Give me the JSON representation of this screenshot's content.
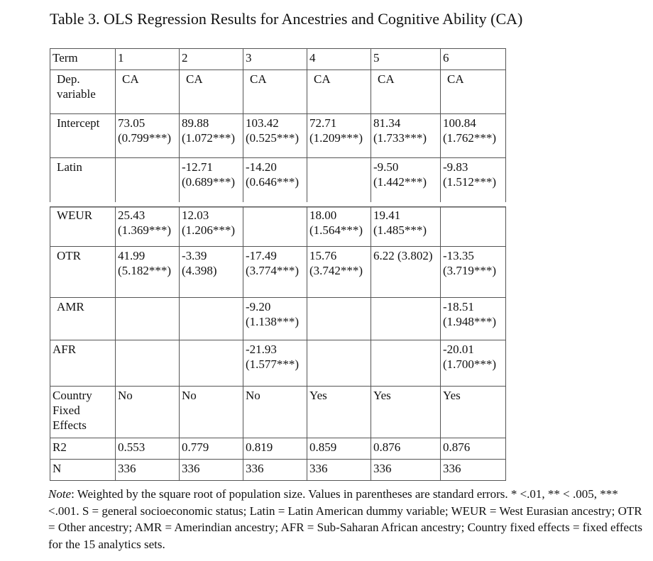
{
  "title": "Table 3. OLS Regression Results for Ancestries and Cognitive Ability (CA)",
  "table": {
    "header": [
      "Term",
      "1",
      "2",
      "3",
      "4",
      "5",
      "6"
    ],
    "rows": [
      {
        "label": "Dep. variable",
        "cells": [
          [
            "CA"
          ],
          [
            "CA"
          ],
          [
            "CA"
          ],
          [
            "CA"
          ],
          [
            "CA"
          ],
          [
            "CA"
          ]
        ]
      },
      {
        "label": "Intercept",
        "cells": [
          [
            "73.05",
            "(0.799***)"
          ],
          [
            "89.88",
            "(1.072***)"
          ],
          [
            "103.42",
            "(0.525***)"
          ],
          [
            "72.71",
            "(1.209***)"
          ],
          [
            "81.34",
            "(1.733***)"
          ],
          [
            "100.84",
            "(1.762***)"
          ]
        ]
      },
      {
        "label": "Latin",
        "cells": [
          [],
          [
            "-12.71",
            "(0.689***)"
          ],
          [
            "-14.20",
            "(0.646***)"
          ],
          [],
          [
            "-9.50",
            "(1.442***)"
          ],
          [
            "-9.83",
            "(1.512***)"
          ]
        ]
      },
      {
        "label": "WEUR",
        "cells": [
          [
            "25.43",
            "(1.369***)"
          ],
          [
            "12.03",
            "(1.206***)"
          ],
          [],
          [
            "18.00",
            "(1.564***)"
          ],
          [
            "19.41",
            "(1.485***)"
          ],
          []
        ]
      },
      {
        "label": "OTR",
        "cells": [
          [
            "41.99",
            "(5.182***)"
          ],
          [
            "-3.39",
            "(4.398)"
          ],
          [
            "-17.49",
            "(3.774***)"
          ],
          [
            "15.76",
            "(3.742***)"
          ],
          [
            "6.22 (3.802)"
          ],
          [
            "-13.35",
            "(3.719***)"
          ]
        ]
      },
      {
        "label": "AMR",
        "cells": [
          [],
          [],
          [
            "-9.20",
            "(1.138***)"
          ],
          [],
          [],
          [
            "-18.51",
            "(1.948***)"
          ]
        ]
      },
      {
        "label": "AFR",
        "cells": [
          [],
          [],
          [
            "-21.93",
            "(1.577***)"
          ],
          [],
          [],
          [
            "-20.01",
            "(1.700***)"
          ]
        ]
      },
      {
        "label": "Country Fixed Effects",
        "cells": [
          [
            "No"
          ],
          [
            "No"
          ],
          [
            "No"
          ],
          [
            "Yes"
          ],
          [
            "Yes"
          ],
          [
            "Yes"
          ]
        ]
      },
      {
        "label": "R2",
        "cells": [
          [
            "0.553"
          ],
          [
            "0.779"
          ],
          [
            "0.819"
          ],
          [
            "0.859"
          ],
          [
            "0.876"
          ],
          [
            "0.876"
          ]
        ]
      },
      {
        "label": "N",
        "cells": [
          [
            "336"
          ],
          [
            "336"
          ],
          [
            "336"
          ],
          [
            "336"
          ],
          [
            "336"
          ],
          [
            "336"
          ]
        ]
      }
    ]
  },
  "note": {
    "prefix": "Note",
    "text": ": Weighted by the square root of population size. Values in parentheses are standard errors. * <.01, ** < .005, *** <.001. S = general socioeconomic status; Latin = Latin American dummy variable; WEUR = West Eurasian ancestry; OTR = Other ancestry; AMR = Amerindian ancestry; AFR = Sub-Saharan African ancestry; Country fixed effects = fixed effects for the 15 analytics sets."
  }
}
